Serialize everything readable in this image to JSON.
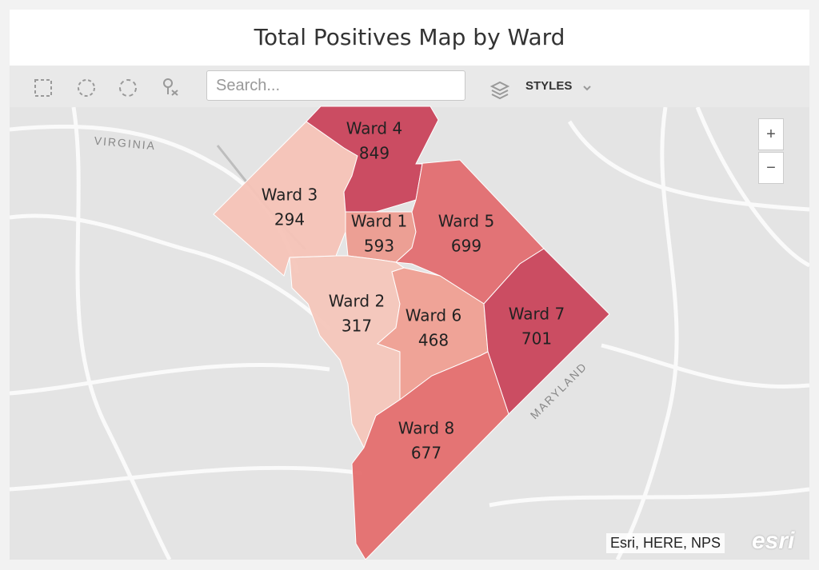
{
  "title": "Total Positives Map by Ward",
  "toolbar": {
    "search_placeholder": "Search...",
    "styles_label": "STYLES"
  },
  "map": {
    "place_labels": [
      "VIRGINIA",
      "MARYLAND"
    ],
    "zoom": [
      "+",
      "−"
    ],
    "attribution": "Esri, HERE, NPS",
    "logo": "esri",
    "wards": [
      {
        "name": "Ward 1",
        "value": 593,
        "color": "#ec9b8f"
      },
      {
        "name": "Ward 2",
        "value": 317,
        "color": "#f4c6ba"
      },
      {
        "name": "Ward 3",
        "value": 294,
        "color": "#f5c3b7"
      },
      {
        "name": "Ward 4",
        "value": 849,
        "color": "#c9435b"
      },
      {
        "name": "Ward 5",
        "value": 699,
        "color": "#e26d70"
      },
      {
        "name": "Ward 6",
        "value": 468,
        "color": "#ef9f92"
      },
      {
        "name": "Ward 7",
        "value": 701,
        "color": "#c9445b"
      },
      {
        "name": "Ward 8",
        "value": 677,
        "color": "#e46e6e"
      }
    ]
  }
}
